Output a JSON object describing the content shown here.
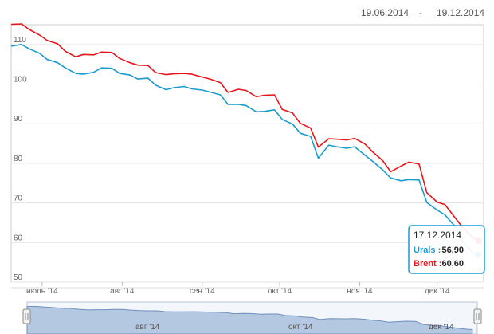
{
  "header": {
    "date_from": "19.06.2014",
    "date_separator": "-",
    "date_to": "19.12.2014"
  },
  "tooltip": {
    "date": "17.12.2014",
    "rows": [
      {
        "label": "Urals :",
        "value": "56,90",
        "color": "#1a9bcf"
      },
      {
        "label": "Brent :",
        "value": "60,60",
        "color": "#e8141b"
      }
    ]
  },
  "navigator": {
    "labels": [
      "авг '14",
      "окт '14",
      "дек '14"
    ]
  },
  "chart_data": {
    "type": "line",
    "x_start": "2014-06-19",
    "x_end": "2014-12-19",
    "ylim": [
      50,
      115
    ],
    "yticks": [
      50,
      60,
      70,
      80,
      90,
      100,
      110
    ],
    "xticks": [
      {
        "date": "2014-07-01",
        "label": "июль '14"
      },
      {
        "date": "2014-08-01",
        "label": "авг '14"
      },
      {
        "date": "2014-09-01",
        "label": "сен '14"
      },
      {
        "date": "2014-10-01",
        "label": "окт '14"
      },
      {
        "date": "2014-11-01",
        "label": "ноя '14"
      },
      {
        "date": "2014-12-01",
        "label": "дек '14"
      }
    ],
    "grid": true,
    "series": [
      {
        "name": "Brent",
        "color": "#e8141b",
        "points": [
          [
            "2014-06-19",
            115.1
          ],
          [
            "2014-06-23",
            115.2
          ],
          [
            "2014-06-26",
            113.8
          ],
          [
            "2014-06-30",
            112.4
          ],
          [
            "2014-07-03",
            111.0
          ],
          [
            "2014-07-07",
            110.2
          ],
          [
            "2014-07-10",
            108.3
          ],
          [
            "2014-07-14",
            106.9
          ],
          [
            "2014-07-17",
            107.5
          ],
          [
            "2014-07-21",
            107.4
          ],
          [
            "2014-07-24",
            108.1
          ],
          [
            "2014-07-28",
            108.0
          ],
          [
            "2014-07-31",
            106.5
          ],
          [
            "2014-08-04",
            105.4
          ],
          [
            "2014-08-07",
            104.8
          ],
          [
            "2014-08-11",
            104.7
          ],
          [
            "2014-08-14",
            102.9
          ],
          [
            "2014-08-18",
            102.4
          ],
          [
            "2014-08-21",
            102.6
          ],
          [
            "2014-08-25",
            102.7
          ],
          [
            "2014-08-28",
            102.5
          ],
          [
            "2014-09-01",
            101.8
          ],
          [
            "2014-09-04",
            101.3
          ],
          [
            "2014-09-08",
            100.4
          ],
          [
            "2014-09-11",
            97.9
          ],
          [
            "2014-09-15",
            98.7
          ],
          [
            "2014-09-18",
            98.4
          ],
          [
            "2014-09-22",
            96.8
          ],
          [
            "2014-09-25",
            97.2
          ],
          [
            "2014-09-29",
            97.3
          ],
          [
            "2014-10-02",
            93.6
          ],
          [
            "2014-10-06",
            92.7
          ],
          [
            "2014-10-09",
            90.1
          ],
          [
            "2014-10-13",
            88.9
          ],
          [
            "2014-10-16",
            84.1
          ],
          [
            "2014-10-20",
            86.2
          ],
          [
            "2014-10-23",
            86.1
          ],
          [
            "2014-10-27",
            85.9
          ],
          [
            "2014-10-30",
            86.3
          ],
          [
            "2014-11-03",
            84.9
          ],
          [
            "2014-11-06",
            82.9
          ],
          [
            "2014-11-10",
            80.6
          ],
          [
            "2014-11-13",
            77.9
          ],
          [
            "2014-11-17",
            79.3
          ],
          [
            "2014-11-20",
            80.3
          ],
          [
            "2014-11-24",
            79.8
          ],
          [
            "2014-11-27",
            72.6
          ],
          [
            "2014-12-01",
            70.2
          ],
          [
            "2014-12-04",
            69.6
          ],
          [
            "2014-12-08",
            66.2
          ],
          [
            "2014-12-11",
            63.7
          ],
          [
            "2014-12-15",
            61.1
          ],
          [
            "2014-12-17",
            60.6
          ]
        ]
      },
      {
        "name": "Urals",
        "color": "#1a9bcf",
        "points": [
          [
            "2014-06-19",
            109.6
          ],
          [
            "2014-06-23",
            110.0
          ],
          [
            "2014-06-26",
            108.9
          ],
          [
            "2014-06-30",
            107.8
          ],
          [
            "2014-07-03",
            106.2
          ],
          [
            "2014-07-07",
            105.4
          ],
          [
            "2014-07-10",
            104.1
          ],
          [
            "2014-07-14",
            102.7
          ],
          [
            "2014-07-17",
            102.5
          ],
          [
            "2014-07-21",
            103.0
          ],
          [
            "2014-07-24",
            104.1
          ],
          [
            "2014-07-28",
            104.0
          ],
          [
            "2014-07-31",
            102.7
          ],
          [
            "2014-08-04",
            102.3
          ],
          [
            "2014-08-07",
            101.3
          ],
          [
            "2014-08-11",
            101.5
          ],
          [
            "2014-08-14",
            99.7
          ],
          [
            "2014-08-18",
            98.6
          ],
          [
            "2014-08-21",
            99.1
          ],
          [
            "2014-08-25",
            99.4
          ],
          [
            "2014-08-28",
            98.8
          ],
          [
            "2014-09-01",
            98.5
          ],
          [
            "2014-09-04",
            98.0
          ],
          [
            "2014-09-08",
            97.3
          ],
          [
            "2014-09-11",
            94.9
          ],
          [
            "2014-09-15",
            94.9
          ],
          [
            "2014-09-18",
            94.6
          ],
          [
            "2014-09-22",
            93.0
          ],
          [
            "2014-09-25",
            93.1
          ],
          [
            "2014-09-29",
            93.5
          ],
          [
            "2014-10-02",
            91.1
          ],
          [
            "2014-10-06",
            89.9
          ],
          [
            "2014-10-09",
            87.6
          ],
          [
            "2014-10-13",
            86.8
          ],
          [
            "2014-10-16",
            81.3
          ],
          [
            "2014-10-20",
            84.6
          ],
          [
            "2014-10-23",
            84.2
          ],
          [
            "2014-10-27",
            83.8
          ],
          [
            "2014-10-30",
            84.2
          ],
          [
            "2014-11-03",
            82.1
          ],
          [
            "2014-11-06",
            80.5
          ],
          [
            "2014-11-10",
            78.3
          ],
          [
            "2014-11-13",
            76.3
          ],
          [
            "2014-11-17",
            75.6
          ],
          [
            "2014-11-20",
            75.9
          ],
          [
            "2014-11-24",
            75.8
          ],
          [
            "2014-11-27",
            70.1
          ],
          [
            "2014-12-01",
            68.2
          ],
          [
            "2014-12-04",
            67.0
          ],
          [
            "2014-12-08",
            64.0
          ],
          [
            "2014-12-11",
            60.1
          ],
          [
            "2014-12-15",
            57.3
          ],
          [
            "2014-12-17",
            56.9
          ]
        ]
      }
    ]
  }
}
